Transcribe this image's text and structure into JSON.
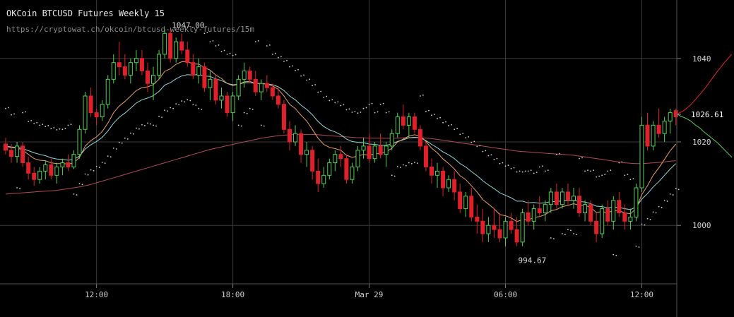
{
  "header": {
    "title": "OKCoin BTCUSD Futures Weekly 15",
    "url": "https://cryptowat.ch/okcoin/btcusd-weekly-futures/15m"
  },
  "chart_data": {
    "type": "candlestick",
    "ylim": [
      986,
      1054
    ],
    "grid": true,
    "y_ticks": [
      1000,
      1020,
      1040
    ],
    "y_tick_labels": [
      "1000",
      "1020",
      "1040"
    ],
    "x_tick_labels": [
      "12:00",
      "18:00",
      "Mar 29",
      "06:00",
      "12:00"
    ],
    "x_tick_candle_index": [
      16,
      40,
      64,
      88,
      112
    ],
    "last_price": "1026.61",
    "annotations": [
      {
        "label": "1047.00",
        "candle_index": 28,
        "value": 1047.0
      },
      {
        "label": "994.67",
        "candle_index": 89,
        "value": 994.67
      }
    ],
    "colors": {
      "up": "#4fd24f",
      "down": "#e0202a",
      "ema_short": "#e8a060",
      "ema_long": "#8fd8d8",
      "sma_long": "#b04a5c",
      "grid": "#3a3a3a",
      "axis_text": "#cfcfcf"
    },
    "ohlc": [
      [
        1019.5,
        1021,
        1017,
        1018
      ],
      [
        1018,
        1019.5,
        1015,
        1016.5
      ],
      [
        1016.5,
        1020,
        1015,
        1019
      ],
      [
        1019,
        1020,
        1014,
        1015
      ],
      [
        1015,
        1016.5,
        1011,
        1012.5
      ],
      [
        1012.5,
        1014,
        1009.5,
        1011
      ],
      [
        1011,
        1014,
        1010,
        1013
      ],
      [
        1013,
        1015.5,
        1011,
        1014.5
      ],
      [
        1014.5,
        1016,
        1011,
        1012
      ],
      [
        1012,
        1015,
        1010,
        1014
      ],
      [
        1014,
        1016,
        1012,
        1015
      ],
      [
        1015,
        1017,
        1013,
        1014
      ],
      [
        1014,
        1018,
        1013.5,
        1017
      ],
      [
        1017,
        1024,
        1016,
        1023
      ],
      [
        1023,
        1032,
        1022,
        1031
      ],
      [
        1031,
        1033,
        1026,
        1027
      ],
      [
        1027,
        1028,
        1024,
        1026
      ],
      [
        1026,
        1030,
        1025,
        1029
      ],
      [
        1029,
        1036,
        1028,
        1035
      ],
      [
        1035,
        1041,
        1034,
        1039
      ],
      [
        1039,
        1044,
        1036,
        1038
      ],
      [
        1038,
        1041,
        1035,
        1036
      ],
      [
        1036,
        1040,
        1034,
        1039
      ],
      [
        1039,
        1042,
        1037,
        1040
      ],
      [
        1040,
        1042,
        1036,
        1037
      ],
      [
        1037,
        1039,
        1032,
        1034
      ],
      [
        1034,
        1038,
        1030,
        1036
      ],
      [
        1036,
        1042,
        1035,
        1041
      ],
      [
        1041,
        1047,
        1040,
        1046
      ],
      [
        1046,
        1047,
        1039,
        1040
      ],
      [
        1040,
        1045,
        1039,
        1044
      ],
      [
        1044,
        1046,
        1041,
        1042
      ],
      [
        1042,
        1044,
        1038,
        1039
      ],
      [
        1039,
        1041,
        1035,
        1036
      ],
      [
        1036,
        1040,
        1034,
        1038
      ],
      [
        1038,
        1039,
        1032,
        1033
      ],
      [
        1033,
        1037,
        1030,
        1035
      ],
      [
        1035,
        1036,
        1029,
        1030
      ],
      [
        1030,
        1033,
        1028,
        1031
      ],
      [
        1031,
        1032,
        1026,
        1027
      ],
      [
        1027,
        1032,
        1025,
        1031
      ],
      [
        1031,
        1036,
        1030,
        1035
      ],
      [
        1035,
        1039,
        1033,
        1037
      ],
      [
        1037,
        1038,
        1034,
        1035
      ],
      [
        1035,
        1037,
        1031,
        1032
      ],
      [
        1032,
        1035,
        1030,
        1034
      ],
      [
        1034,
        1036,
        1032,
        1033
      ],
      [
        1033,
        1034,
        1030,
        1031
      ],
      [
        1031,
        1033,
        1028,
        1029
      ],
      [
        1029,
        1030,
        1022,
        1023
      ],
      [
        1023,
        1025,
        1018,
        1020
      ],
      [
        1020,
        1024,
        1019,
        1022
      ],
      [
        1022,
        1023,
        1015,
        1017
      ],
      [
        1017,
        1020,
        1014,
        1018
      ],
      [
        1018,
        1019,
        1011,
        1013
      ],
      [
        1013,
        1016,
        1008,
        1010
      ],
      [
        1010,
        1014,
        1009,
        1012
      ],
      [
        1012,
        1016,
        1011,
        1015
      ],
      [
        1015,
        1018,
        1013,
        1017
      ],
      [
        1017,
        1019,
        1014,
        1016
      ],
      [
        1016,
        1017,
        1010,
        1011
      ],
      [
        1011,
        1015,
        1010,
        1014
      ],
      [
        1014,
        1019,
        1013,
        1018
      ],
      [
        1018,
        1021,
        1016,
        1019
      ],
      [
        1019,
        1022,
        1015,
        1016
      ],
      [
        1016,
        1020,
        1015,
        1019
      ],
      [
        1019,
        1022,
        1016,
        1017
      ],
      [
        1017,
        1020,
        1014,
        1019
      ],
      [
        1019,
        1023,
        1018,
        1022
      ],
      [
        1022,
        1027,
        1021,
        1026
      ],
      [
        1026,
        1029,
        1023,
        1024
      ],
      [
        1024,
        1027,
        1021,
        1026
      ],
      [
        1026,
        1027,
        1022,
        1023
      ],
      [
        1023,
        1024,
        1018,
        1019
      ],
      [
        1019,
        1020,
        1013,
        1014
      ],
      [
        1014,
        1016,
        1010,
        1012
      ],
      [
        1012,
        1015,
        1009,
        1013
      ],
      [
        1013,
        1014,
        1007,
        1009
      ],
      [
        1009,
        1012,
        1008,
        1011
      ],
      [
        1011,
        1013,
        1006,
        1008
      ],
      [
        1008,
        1010,
        1003,
        1004
      ],
      [
        1004,
        1008,
        1002,
        1007
      ],
      [
        1007,
        1009,
        1001,
        1002
      ],
      [
        1002,
        1005,
        998,
        1001
      ],
      [
        1001,
        1004,
        996,
        998
      ],
      [
        998,
        1002,
        996,
        1000
      ],
      [
        1000,
        1004,
        997,
        999
      ],
      [
        999,
        1003,
        996,
        997
      ],
      [
        997,
        1002,
        995,
        1001
      ],
      [
        1001,
        1003,
        998,
        999
      ],
      [
        999,
        1002,
        995,
        996
      ],
      [
        996,
        1004,
        995,
        1003
      ],
      [
        1003,
        1006,
        1000,
        1001
      ],
      [
        1001,
        1005,
        999,
        1004
      ],
      [
        1004,
        1007,
        1002,
        1003
      ],
      [
        1003,
        1006,
        1001,
        1005
      ],
      [
        1005,
        1009,
        1003,
        1008
      ],
      [
        1008,
        1010,
        1004,
        1005
      ],
      [
        1005,
        1009,
        1004,
        1008
      ],
      [
        1008,
        1010,
        1005,
        1006
      ],
      [
        1006,
        1009,
        1004,
        1007
      ],
      [
        1007,
        1009,
        1002,
        1003
      ],
      [
        1003,
        1006,
        1001,
        1005
      ],
      [
        1005,
        1006,
        1000,
        1001
      ],
      [
        1001,
        1003,
        996,
        998
      ],
      [
        998,
        1005,
        997,
        1004
      ],
      [
        1004,
        1006,
        1000,
        1001
      ],
      [
        1001,
        1007,
        999,
        1006
      ],
      [
        1006,
        1008,
        1002,
        1003
      ],
      [
        1003,
        1005,
        999,
        1001
      ],
      [
        1001,
        1004,
        999,
        1002
      ],
      [
        1002,
        1010,
        1001,
        1009
      ],
      [
        1009,
        1026,
        1008,
        1024
      ],
      [
        1024,
        1027,
        1018,
        1019
      ],
      [
        1019,
        1025,
        1018,
        1024
      ],
      [
        1024,
        1028,
        1021,
        1022
      ],
      [
        1022,
        1026,
        1020,
        1025
      ],
      [
        1025,
        1028,
        1022,
        1027
      ],
      [
        1027.5,
        1028,
        1024,
        1026
      ]
    ],
    "ema_short": [
      1019,
      1018.6,
      1018.6,
      1018,
      1017,
      1016,
      1015.6,
      1015.5,
      1015,
      1014.8,
      1014.8,
      1014.7,
      1015,
      1016.3,
      1019,
      1020.3,
      1021.2,
      1022.5,
      1024.5,
      1027,
      1028.6,
      1029.7,
      1031,
      1032.3,
      1033,
      1033.2,
      1033.7,
      1035,
      1036.9,
      1037.5,
      1038.6,
      1039.2,
      1039.2,
      1038.7,
      1038.6,
      1037.8,
      1037.2,
      1036,
      1035.2,
      1034,
      1033.5,
      1033.8,
      1034.4,
      1034.5,
      1034,
      1034,
      1033.8,
      1033.4,
      1032.6,
      1031,
      1029,
      1028,
      1026.4,
      1025,
      1023,
      1020.9,
      1019.4,
      1018.7,
      1018.4,
      1018,
      1016.8,
      1016.3,
      1016.6,
      1017,
      1016.8,
      1017.2,
      1017.2,
      1017.6,
      1018.5,
      1020,
      1020.7,
      1021.4,
      1021.7,
      1021.4,
      1020.1,
      1018.5,
      1017.4,
      1015.9,
      1014.8,
      1013.5,
      1011.9,
      1011,
      1009.5,
      1008,
      1006.2,
      1005.1,
      1004,
      1002.6,
      1002.3,
      1001.8,
      1000.9,
      1001.4,
      1001.3,
      1001.9,
      1002.1,
      1002.6,
      1003.5,
      1003.8,
      1004.5,
      1004.8,
      1005.2,
      1004.8,
      1004.8,
      1004.3,
      1003.1,
      1003.3,
      1003,
      1003.6,
      1003.5,
      1003,
      1002.8,
      1004,
      1007.4,
      1009.5,
      1012,
      1013.8,
      1015.8,
      1017.9,
      1019.5
    ],
    "ema_long": [
      1019,
      1018.8,
      1018.7,
      1018.4,
      1017.9,
      1017.4,
      1017,
      1016.7,
      1016.2,
      1015.9,
      1015.8,
      1015.6,
      1015.8,
      1016.6,
      1018.3,
      1019.3,
      1020.1,
      1021.1,
      1022.6,
      1024.5,
      1025.9,
      1026.9,
      1028.1,
      1029.3,
      1030.1,
      1030.5,
      1031.1,
      1032.1,
      1033.6,
      1034.2,
      1035.1,
      1035.8,
      1036.1,
      1036,
      1036.2,
      1035.8,
      1035.7,
      1035.1,
      1034.7,
      1034,
      1033.7,
      1033.8,
      1034.2,
      1034.2,
      1034,
      1034,
      1033.9,
      1033.7,
      1033.2,
      1032.3,
      1031,
      1030.1,
      1028.8,
      1027.8,
      1026.5,
      1024.9,
      1023.7,
      1022.9,
      1022.4,
      1021.7,
      1020.7,
      1020.1,
      1019.9,
      1019.8,
      1019.5,
      1019.4,
      1019.2,
      1019.2,
      1019.5,
      1020.1,
      1020.5,
      1021,
      1021.1,
      1021,
      1020.3,
      1019.4,
      1018.6,
      1017.6,
      1016.9,
      1016,
      1014.8,
      1014,
      1012.9,
      1011.9,
      1010.7,
      1009.7,
      1008.8,
      1007.8,
      1007.2,
      1006.6,
      1005.8,
      1005.8,
      1005.4,
      1005.5,
      1005.3,
      1005.4,
      1005.7,
      1005.7,
      1005.9,
      1005.9,
      1006,
      1005.7,
      1005.6,
      1005.2,
      1004.6,
      1004.5,
      1004.2,
      1004.4,
      1004.3,
      1004,
      1003.8,
      1004.4,
      1006.3,
      1007.6,
      1009.2,
      1010.5,
      1012,
      1013.5,
      1014.8
    ],
    "sma_long": [
      1007.5,
      1007.6,
      1007.7,
      1007.8,
      1007.9,
      1008,
      1008.1,
      1008.2,
      1008.3,
      1008.4,
      1008.6,
      1008.8,
      1009,
      1009.2,
      1009.5,
      1009.8,
      1010.2,
      1010.6,
      1011,
      1011.4,
      1011.8,
      1012.2,
      1012.6,
      1013,
      1013.4,
      1013.8,
      1014.2,
      1014.6,
      1015,
      1015.4,
      1015.8,
      1016.2,
      1016.6,
      1017,
      1017.4,
      1017.8,
      1018.2,
      1018.5,
      1018.8,
      1019.1,
      1019.4,
      1019.7,
      1020,
      1020.3,
      1020.6,
      1020.9,
      1021.1,
      1021.3,
      1021.5,
      1021.6,
      1021.7,
      1021.8,
      1021.8,
      1021.8,
      1021.8,
      1021.7,
      1021.6,
      1021.5,
      1021.4,
      1021.3,
      1021.2,
      1021.1,
      1021,
      1021,
      1020.9,
      1020.9,
      1020.9,
      1020.9,
      1020.9,
      1020.9,
      1021,
      1021,
      1021,
      1021,
      1020.9,
      1020.8,
      1020.6,
      1020.4,
      1020.2,
      1020,
      1019.8,
      1019.6,
      1019.4,
      1019.2,
      1019,
      1018.8,
      1018.6,
      1018.4,
      1018.2,
      1018,
      1017.8,
      1017.7,
      1017.6,
      1017.5,
      1017.4,
      1017.3,
      1017.2,
      1017.1,
      1017,
      1016.9,
      1016.8,
      1016.6,
      1016.4,
      1016.2,
      1016,
      1015.8,
      1015.6,
      1015.4,
      1015.2,
      1015,
      1014.9,
      1014.8,
      1014.8,
      1014.9,
      1015,
      1015.1,
      1015.2,
      1015.4,
      1015.5
    ],
    "order_book_bids": [
      1026.5,
      1026.2,
      1026,
      1025.8,
      1025.6,
      1025.3,
      1025,
      1024.6,
      1024.2,
      1023.8,
      1023.5,
      1023.1,
      1022.6,
      1022.2,
      1021.8,
      1021.4,
      1021,
      1020.6,
      1020.2,
      1019.8,
      1019.3,
      1018.8,
      1018.3,
      1017.8,
      1017.3,
      1016.8,
      1016.3
    ],
    "order_book_asks": [
      1026.8,
      1027.1,
      1027.4,
      1027.8,
      1028.3,
      1028.8,
      1029.4,
      1030.1,
      1030.8,
      1031.4,
      1032.1,
      1032.8,
      1033.6,
      1034.4,
      1035.2,
      1036,
      1036.8,
      1037.5,
      1038.2,
      1039,
      1039.6,
      1040.3,
      1041
    ]
  }
}
